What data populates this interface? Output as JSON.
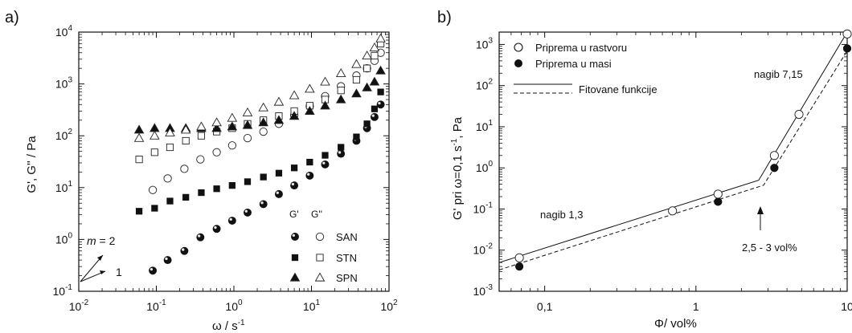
{
  "chart_data": [
    {
      "panel": "a)",
      "type": "scatter",
      "xlabel": "ω / s",
      "xlabel_sup": "-1",
      "ylabel": "G', G'' / Pa",
      "xscale": "log",
      "yscale": "log",
      "xlim": [
        0.01,
        100
      ],
      "ylim": [
        0.1,
        10000
      ],
      "x_ticks": [
        {
          "base": "10",
          "exp": "-2",
          "value": 0.01
        },
        {
          "base": "10",
          "exp": "-1",
          "value": 0.1
        },
        {
          "base": "10",
          "exp": "0",
          "value": 1
        },
        {
          "base": "10",
          "exp": "1",
          "value": 10
        },
        {
          "base": "10",
          "exp": "2",
          "value": 100
        }
      ],
      "y_ticks": [
        {
          "base": "10",
          "exp": "-1",
          "value": 0.1
        },
        {
          "base": "10",
          "exp": "0",
          "value": 1
        },
        {
          "base": "10",
          "exp": "1",
          "value": 10
        },
        {
          "base": "10",
          "exp": "2",
          "value": 100
        },
        {
          "base": "10",
          "exp": "3",
          "value": 1000
        },
        {
          "base": "10",
          "exp": "4",
          "value": 10000
        }
      ],
      "legend_header": [
        "G'",
        "G''"
      ],
      "legend_names": [
        "SAN",
        "STN",
        "SPN"
      ],
      "legend_position": "bottom-right",
      "slope_annotation": {
        "label_m": "m",
        "label_eq": " = 2",
        "label_1": "1"
      },
      "series": [
        {
          "name": "SAN",
          "modulus": "G'",
          "marker": "sphere",
          "x": [
            0.09,
            0.14,
            0.23,
            0.37,
            0.6,
            0.95,
            1.5,
            2.4,
            3.8,
            6.0,
            9.5,
            15,
            24,
            38,
            52,
            65,
            78
          ],
          "y": [
            0.25,
            0.4,
            0.6,
            1.1,
            1.6,
            2.3,
            3.3,
            4.8,
            7.5,
            11,
            17,
            28,
            45,
            80,
            140,
            230,
            400
          ]
        },
        {
          "name": "SAN",
          "modulus": "G''",
          "marker": "circle-open",
          "x": [
            0.09,
            0.14,
            0.23,
            0.37,
            0.6,
            0.95,
            1.5,
            2.4,
            3.8,
            6.0,
            9.5,
            15,
            24,
            38,
            52,
            65,
            78
          ],
          "y": [
            9,
            15,
            23,
            35,
            48,
            65,
            90,
            120,
            170,
            250,
            370,
            580,
            900,
            1450,
            2000,
            2800,
            4000
          ]
        },
        {
          "name": "STN",
          "modulus": "G'",
          "marker": "square-filled",
          "x": [
            0.06,
            0.095,
            0.15,
            0.24,
            0.38,
            0.6,
            0.95,
            1.5,
            2.4,
            3.8,
            6.0,
            9.5,
            15,
            24,
            38,
            52,
            65,
            78
          ],
          "y": [
            3.5,
            4,
            5.5,
            6.5,
            8,
            9.5,
            11,
            13,
            16,
            19,
            24,
            31,
            42,
            60,
            95,
            170,
            330,
            700
          ]
        },
        {
          "name": "STN",
          "modulus": "G''",
          "marker": "square-open",
          "x": [
            0.06,
            0.095,
            0.15,
            0.24,
            0.38,
            0.6,
            0.95,
            1.5,
            2.4,
            3.8,
            6.0,
            9.5,
            15,
            24,
            38,
            52,
            65,
            78
          ],
          "y": [
            35,
            48,
            60,
            80,
            100,
            120,
            140,
            170,
            200,
            240,
            300,
            380,
            500,
            750,
            1200,
            2000,
            3500,
            6000
          ]
        },
        {
          "name": "SPN",
          "modulus": "G'",
          "marker": "triangle-filled",
          "x": [
            0.06,
            0.095,
            0.15,
            0.24,
            0.38,
            0.6,
            0.95,
            1.5,
            2.4,
            3.8,
            6.0,
            9.5,
            15,
            24,
            38,
            52,
            65,
            78
          ],
          "y": [
            130,
            140,
            140,
            140,
            140,
            140,
            150,
            160,
            180,
            200,
            240,
            300,
            380,
            500,
            650,
            850,
            1100,
            1800
          ]
        },
        {
          "name": "SPN",
          "modulus": "G''",
          "marker": "triangle-open",
          "x": [
            0.06,
            0.095,
            0.15,
            0.24,
            0.38,
            0.6,
            0.95,
            1.5,
            2.4,
            3.8,
            6.0,
            9.5,
            15,
            24,
            38,
            52,
            65,
            78
          ],
          "y": [
            90,
            100,
            115,
            130,
            150,
            180,
            220,
            280,
            350,
            450,
            600,
            800,
            1100,
            1600,
            2400,
            3500,
            5000,
            7500
          ]
        }
      ]
    },
    {
      "panel": "b)",
      "type": "scatter",
      "xlabel": "Φ/ vol%",
      "ylabel_parts": [
        "G' pri ω=0,1 s",
        "-1",
        ", Pa"
      ],
      "xscale": "log",
      "yscale": "log",
      "xlim": [
        0.05,
        10
      ],
      "ylim": [
        0.001,
        2000
      ],
      "x_ticks": [
        {
          "label": "0,1",
          "value": 0.1
        },
        {
          "label": "1",
          "value": 1
        },
        {
          "label": "10",
          "value": 10
        }
      ],
      "y_ticks": [
        {
          "base": "10",
          "exp": "-3",
          "value": 0.001
        },
        {
          "base": "10",
          "exp": "-2",
          "value": 0.01
        },
        {
          "base": "10",
          "exp": "-1",
          "value": 0.1
        },
        {
          "base": "10",
          "exp": "0",
          "value": 1
        },
        {
          "base": "10",
          "exp": "1",
          "value": 10
        },
        {
          "base": "10",
          "exp": "2",
          "value": 100
        },
        {
          "base": "10",
          "exp": "3",
          "value": 1000
        }
      ],
      "legend": [
        {
          "label": "Priprema u rastvoru",
          "marker": "circle-open"
        },
        {
          "label": "Priprema u masi",
          "marker": "circle-filled"
        },
        {
          "label": "Fitovane funkcije",
          "marker": "lines"
        }
      ],
      "legend_position": "top-left",
      "annotations": {
        "slope_low": "nagib 1,3",
        "slope_high": "nagib 7,15",
        "threshold": "2,5 - 3 vol%"
      },
      "series": [
        {
          "name": "Priprema u rastvoru",
          "marker": "circle-open",
          "x": [
            0.068,
            0.7,
            1.4,
            3.3,
            4.8,
            10
          ],
          "y": [
            0.0065,
            0.09,
            0.23,
            2,
            20,
            1800
          ]
        },
        {
          "name": "Priprema u masi",
          "marker": "circle-filled",
          "x": [
            0.068,
            1.4,
            3.3,
            10
          ],
          "y": [
            0.004,
            0.15,
            1,
            800
          ]
        }
      ],
      "fit_lines": [
        {
          "style": "solid",
          "x": [
            0.05,
            2.6,
            10
          ],
          "y": [
            0.005,
            0.5,
            2000
          ]
        },
        {
          "style": "dashed",
          "x": [
            0.05,
            2.8,
            10
          ],
          "y": [
            0.0033,
            0.38,
            700
          ]
        }
      ]
    }
  ]
}
